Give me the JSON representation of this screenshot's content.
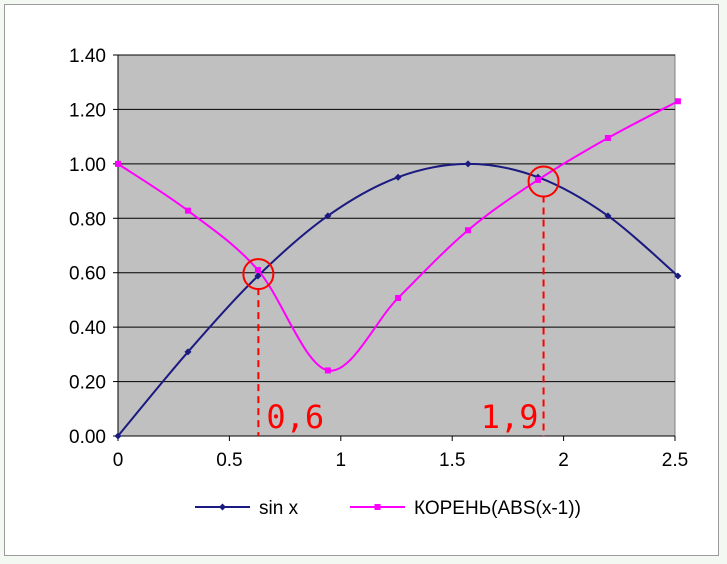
{
  "chart_data": {
    "type": "line",
    "x": [
      0,
      0.314,
      0.628,
      0.942,
      1.257,
      1.571,
      1.885,
      2.199,
      2.513
    ],
    "series": [
      {
        "name": "sin x",
        "values": [
          0,
          0.309,
          0.588,
          0.809,
          0.951,
          1.0,
          0.951,
          0.809,
          0.588
        ],
        "color": "#1a1a80",
        "marker": "diamond"
      },
      {
        "name": "КОРЕНЬ(ABS(x-1))",
        "values": [
          1.0,
          0.828,
          0.61,
          0.241,
          0.507,
          0.756,
          0.941,
          1.095,
          1.23
        ],
        "color": "#ff00ff",
        "marker": "square"
      }
    ],
    "xlim": [
      0,
      2.5
    ],
    "ylim": [
      0,
      1.4
    ],
    "xticks": [
      0,
      0.5,
      1,
      1.5,
      2,
      2.5
    ],
    "xtick_labels": [
      "0",
      "0.5",
      "1",
      "1.5",
      "2",
      "2.5"
    ],
    "yticks": [
      0,
      0.2,
      0.4,
      0.6,
      0.8,
      1.0,
      1.2,
      1.4
    ],
    "ytick_labels": [
      "0.00",
      "0.20",
      "0.40",
      "0.60",
      "0.80",
      "1.00",
      "1.20",
      "1.40"
    ],
    "grid": true,
    "plot_background": "#c0c0c0",
    "legend_position": "bottom",
    "title": "",
    "xlabel": "",
    "ylabel": "",
    "annotations": [
      {
        "text": "0,6",
        "x": 0.63,
        "y": 0.595
      },
      {
        "text": "1,9",
        "x": 1.91,
        "y": 0.935
      }
    ],
    "annotation_color": "#ff0000"
  }
}
